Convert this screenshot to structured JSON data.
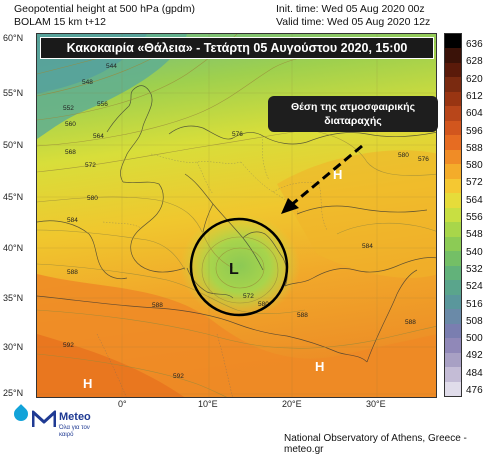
{
  "header": {
    "line1": "Geopotential height at 500 hPa (gpdm)",
    "line2": "BOLAM 15 km t+12",
    "init_time": "Init. time: Wed 05 Aug 2020 00z",
    "valid_time": "Valid time: Wed 05 Aug 2020 12z"
  },
  "title": "Κακοκαιρία «Θάλεια» - Τετάρτη 05 Αυγούστου 2020, 15:00",
  "annotation": {
    "line1": "Θέση της ατμοσφαιρικής",
    "line2": "διαταραχής"
  },
  "pressure_centers": {
    "low": "L",
    "high_east": "H",
    "high_southeast": "H",
    "high_southwest": "H"
  },
  "contour_labels": [
    "544",
    "548",
    "552",
    "556",
    "560",
    "564",
    "568",
    "572",
    "576",
    "580",
    "584",
    "588",
    "592"
  ],
  "lat_labels": [
    "60°N",
    "55°N",
    "50°N",
    "45°N",
    "40°N",
    "35°N",
    "30°N",
    "25°N"
  ],
  "lon_labels": [
    "0°",
    "10°E",
    "20°E",
    "30°E"
  ],
  "colorbar": {
    "levels": [
      "636",
      "628",
      "620",
      "612",
      "604",
      "596",
      "588",
      "580",
      "572",
      "564",
      "556",
      "548",
      "540",
      "532",
      "524",
      "516",
      "508",
      "500",
      "492",
      "484",
      "476"
    ],
    "colors": [
      "#000000",
      "#3a1208",
      "#5a1a0a",
      "#7a2a10",
      "#993512",
      "#b8461a",
      "#d2561e",
      "#e66c22",
      "#f08c26",
      "#f4ac2a",
      "#f5c832",
      "#e6dc3a",
      "#c8df42",
      "#a8d64a",
      "#8ccb55",
      "#74bf66",
      "#62b27a",
      "#5aa58c",
      "#5a979c",
      "#6a8aa8",
      "#7a7eb0",
      "#9088b8",
      "#a8a0c4",
      "#c4bcd6",
      "#e0dcea"
    ]
  },
  "logo": {
    "brand": "Meteo",
    "tagline": "Όλα για τον καιρό"
  },
  "footer": "National Observatory of Athens, Greece - meteo.gr"
}
